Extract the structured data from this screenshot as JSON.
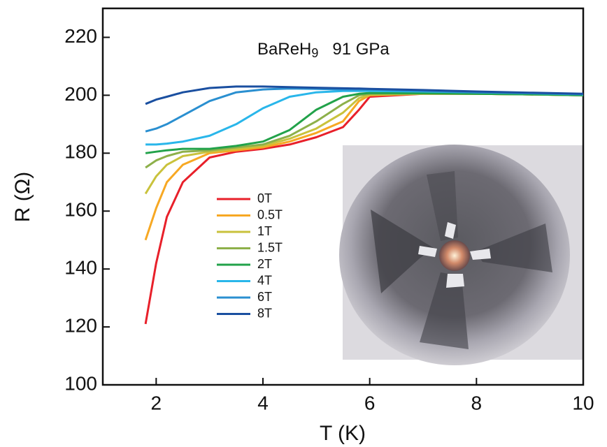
{
  "chart_data": {
    "type": "line",
    "annotation": {
      "compound": "BaReH",
      "subscript": "9",
      "pressure": "91 GPa"
    },
    "x_label": "T (K)",
    "y_label": "R (Ω)",
    "xlim": [
      1,
      10
    ],
    "ylim": [
      100,
      230
    ],
    "xticks": [
      2,
      4,
      6,
      8,
      10
    ],
    "yticks": [
      100,
      120,
      140,
      160,
      180,
      200,
      220
    ],
    "x": [
      1.8,
      2,
      2.2,
      2.5,
      3,
      3.5,
      4,
      4.5,
      5,
      5.5,
      5.8,
      6,
      7,
      8,
      9,
      10
    ],
    "series": [
      {
        "name": "0T",
        "color": "#e8202a",
        "values": [
          121,
          142,
          158,
          170,
          178.5,
          180.5,
          181.5,
          183,
          185.5,
          189,
          195,
          199.5,
          200.5,
          200.5,
          200.3,
          200
        ]
      },
      {
        "name": "0.5T",
        "color": "#f7a823",
        "values": [
          150,
          161,
          170,
          176,
          180,
          181,
          182,
          184,
          187,
          191,
          198,
          200,
          200.5,
          200.5,
          200.3,
          200
        ]
      },
      {
        "name": "1T",
        "color": "#c9c23c",
        "values": [
          166,
          172,
          176,
          179,
          180.5,
          181.5,
          182.5,
          185,
          188.5,
          194,
          199,
          200.2,
          200.5,
          200.5,
          200.3,
          200
        ]
      },
      {
        "name": "1.5T",
        "color": "#8db04a",
        "values": [
          175,
          177.5,
          179,
          180.5,
          181,
          182,
          183,
          186,
          191,
          197,
          200,
          200.5,
          200.6,
          200.5,
          200.3,
          200
        ]
      },
      {
        "name": "2T",
        "color": "#22a24a",
        "values": [
          180,
          180.5,
          181,
          181.5,
          181.5,
          182.5,
          184,
          188,
          195,
          199.5,
          200.5,
          200.8,
          200.7,
          200.5,
          200.3,
          200
        ]
      },
      {
        "name": "4T",
        "color": "#29b6ea",
        "values": [
          183,
          183,
          183.3,
          184,
          186,
          190,
          195.5,
          199.5,
          201,
          201.5,
          201.5,
          201.5,
          201.3,
          201,
          200.7,
          200.3
        ]
      },
      {
        "name": "6T",
        "color": "#2a8fd0",
        "values": [
          187.5,
          188.5,
          190,
          193,
          198,
          201,
          202,
          202.3,
          202.2,
          202,
          202,
          202,
          201.5,
          201,
          200.8,
          200.4
        ]
      },
      {
        "name": "8T",
        "color": "#1a4fa0",
        "values": [
          197,
          198.5,
          199.5,
          201,
          202.5,
          203,
          203,
          202.8,
          202.6,
          202.4,
          202.3,
          202.2,
          201.8,
          201.3,
          200.9,
          200.5
        ]
      }
    ]
  }
}
